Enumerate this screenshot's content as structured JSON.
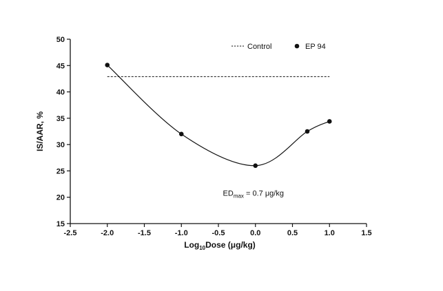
{
  "chart_data": {
    "type": "line",
    "xlabel_main": "Log",
    "xlabel_sub": "10",
    "xlabel_rest": "Dose (μg/kg)",
    "ylabel": "IS/AAR, %",
    "xlim": [
      -2.5,
      1.5
    ],
    "ylim": [
      15,
      50
    ],
    "xticks": [
      "-2.5",
      "-2.0",
      "-1.5",
      "-1.0",
      "-0.5",
      "0.0",
      "0.5",
      "1.0",
      "1.5"
    ],
    "yticks": [
      "15",
      "20",
      "25",
      "30",
      "35",
      "40",
      "45",
      "50"
    ],
    "grid": false,
    "legend_position": "top-right",
    "series": [
      {
        "name": "Control",
        "style": "dashed",
        "x": [
          -2.0,
          1.0
        ],
        "y": [
          42.9,
          42.9
        ]
      },
      {
        "name": "EP 94",
        "style": "markers-with-smooth-curve",
        "x": [
          -2.0,
          -1.0,
          0.0,
          0.7,
          1.0
        ],
        "y": [
          45.1,
          32.0,
          26.0,
          32.5,
          34.4
        ]
      }
    ],
    "annotation": {
      "main": "ED",
      "sub": "max",
      "rest": " = 0.7 μg/kg",
      "x": 0.0,
      "y": 20.3
    },
    "colors": {
      "line": "#111111",
      "marker": "#111111"
    }
  }
}
